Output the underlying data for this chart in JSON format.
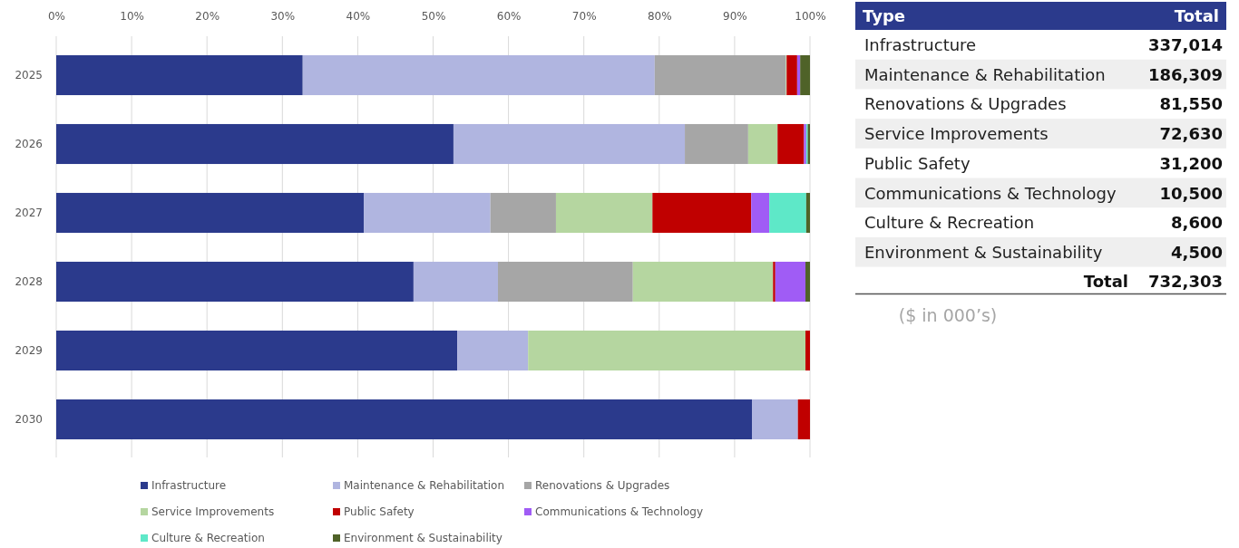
{
  "chart_data": [
    {
      "type": "bar",
      "orientation": "horizontal",
      "stacked": true,
      "categories": [
        "2025",
        "2026",
        "2027",
        "2028",
        "2029",
        "2030"
      ],
      "series": [
        {
          "name": "Infrastructure",
          "color": "#2b3a8c",
          "values": [
            32.7,
            52.7,
            40.8,
            47.4,
            53.2,
            92.3
          ]
        },
        {
          "name": "Maintenance & Rehabilitation",
          "color": "#b0b5e0",
          "values": [
            46.7,
            30.7,
            16.8,
            11.2,
            9.4,
            6.1
          ]
        },
        {
          "name": "Renovations & Upgrades",
          "color": "#a6a6a6",
          "values": [
            17.4,
            8.4,
            8.7,
            17.9,
            0,
            0
          ]
        },
        {
          "name": "Service Improvements",
          "color": "#b5d6a0",
          "values": [
            0.1,
            3.9,
            12.8,
            18.6,
            36.8,
            0
          ]
        },
        {
          "name": "Public Safety",
          "color": "#c00000",
          "values": [
            1.4,
            3.5,
            13.1,
            0.3,
            0.6,
            1.6
          ]
        },
        {
          "name": "Communications & Technology",
          "color": "#a05cf5",
          "values": [
            0.4,
            0.3,
            2.4,
            4.0,
            0,
            0
          ]
        },
        {
          "name": "Culture & Recreation",
          "color": "#5ee8c8",
          "values": [
            0,
            0.2,
            4.9,
            0,
            0,
            0
          ]
        },
        {
          "name": "Environment & Sustainability",
          "color": "#4f6228",
          "values": [
            1.3,
            0.3,
            0.5,
            0.6,
            0,
            0
          ]
        }
      ],
      "xlim": [
        0,
        100
      ],
      "xticks": [
        {
          "value": 0,
          "label": "0%"
        },
        {
          "value": 10,
          "label": "10%"
        },
        {
          "value": 20,
          "label": "20%"
        },
        {
          "value": 30,
          "label": "30%"
        },
        {
          "value": 40,
          "label": "40%"
        },
        {
          "value": 50,
          "label": "50%"
        },
        {
          "value": 60,
          "label": "60%"
        },
        {
          "value": 70,
          "label": "70%"
        },
        {
          "value": 80,
          "label": "80%"
        },
        {
          "value": 90,
          "label": "90%"
        },
        {
          "value": 100,
          "label": "100%"
        }
      ],
      "grid": "x",
      "legend": "bottom"
    },
    {
      "type": "other",
      "categories": [
        "Infrastructure",
        "Maintenance & Rehabilitation",
        "Renovations & Upgrades",
        "Service Improvements",
        "Public Safety",
        "Communications & Technology",
        "Culture & Recreation",
        "Environment & Sustainability"
      ],
      "value_labels": [
        "337,014",
        "186,309",
        "81,550",
        "72,630",
        "31,200",
        "10,500",
        "8,600",
        "4,500"
      ],
      "annotations": [
        "Type",
        "Total",
        "Total",
        "732,303",
        "($ in 000’s)"
      ]
    }
  ]
}
